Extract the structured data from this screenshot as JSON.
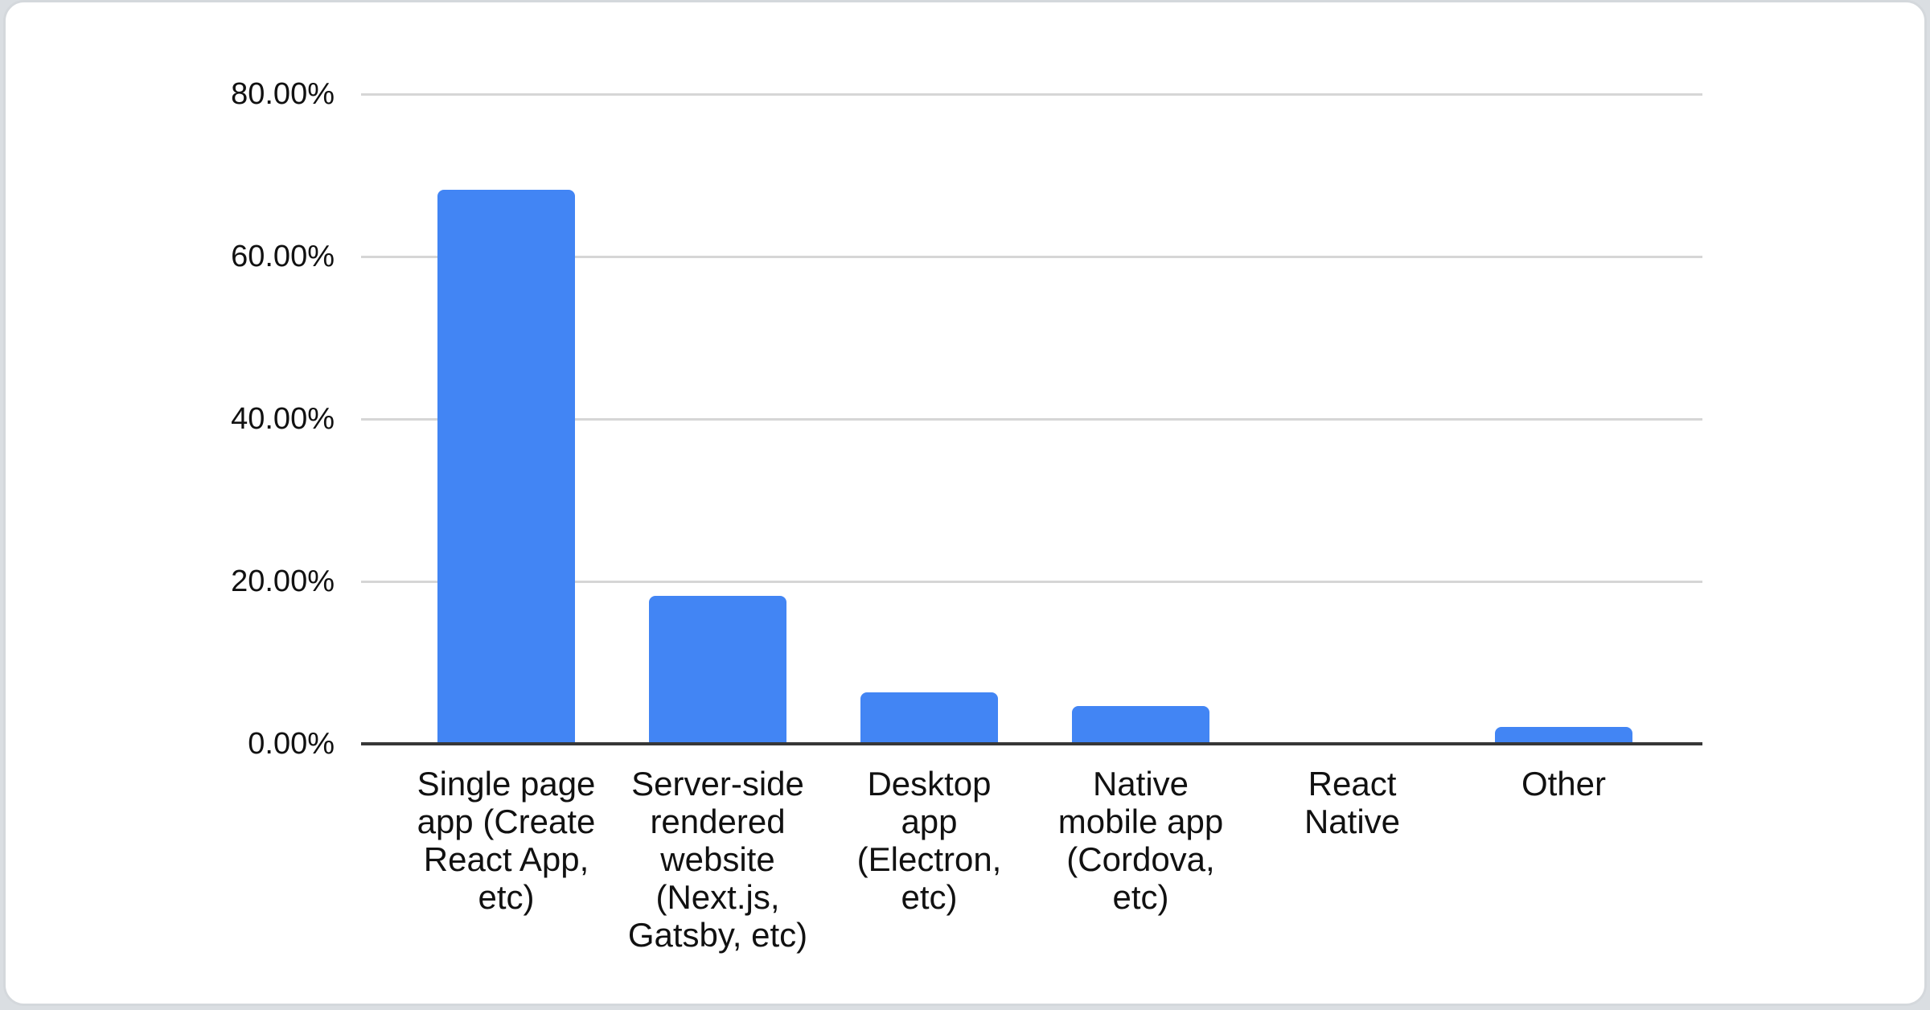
{
  "page": {
    "background_color": "#dadee2",
    "card_color": "#ffffff",
    "card_border_color": "#d4d8dc"
  },
  "chart_data": {
    "type": "bar",
    "title": "",
    "xlabel": "",
    "ylabel": "",
    "categories": [
      "Single page app (Create React App, etc)",
      "Server-side rendered website (Next.js, Gatsby, etc)",
      "Desktop app (Electron, etc)",
      "Native mobile app (Cordova, etc)",
      "React Native",
      "Other"
    ],
    "category_label_lines": [
      [
        "Single page",
        "app (Create",
        "React App,",
        "etc)"
      ],
      [
        "Server-side",
        "rendered",
        "website",
        "(Next.js,",
        "Gatsby, etc)"
      ],
      [
        "Desktop",
        "app",
        "(Electron,",
        "etc)"
      ],
      [
        "Native",
        "mobile app",
        "(Cordova,",
        "etc)"
      ],
      [
        "React",
        "Native"
      ],
      [
        "Other"
      ]
    ],
    "values": [
      68.2,
      18.2,
      6.3,
      4.7,
      0,
      2.1
    ],
    "value_unit": "percent",
    "ylim": [
      0,
      80
    ],
    "y_tick_values": [
      0,
      20,
      40,
      60,
      80
    ],
    "y_tick_labels": [
      "0.00%",
      "20.00%",
      "40.00%",
      "60.00%",
      "80.00%"
    ],
    "grid": "horizontal",
    "legend": "none",
    "bar_color": "#4285f4",
    "axis_line_color": "#373737",
    "gridline_color": "#d6d6d6",
    "text_color": "#111111"
  }
}
